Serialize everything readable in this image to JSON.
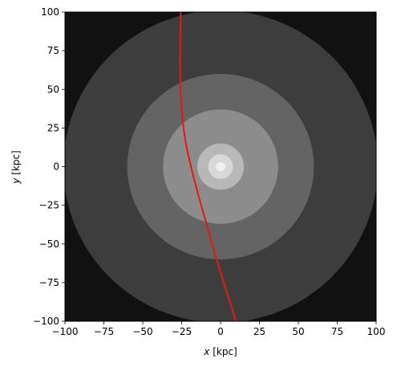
{
  "chart_data": {
    "type": "contour",
    "xlabel_var": "x",
    "xlabel_unit": " [kpc]",
    "ylabel_var": "y",
    "ylabel_unit": " [kpc]",
    "xlim": [
      -100,
      100
    ],
    "ylim": [
      -100,
      100
    ],
    "xticks": [
      -100,
      -75,
      -50,
      -25,
      0,
      25,
      50,
      75,
      100
    ],
    "yticks": [
      -100,
      -75,
      -50,
      -25,
      0,
      25,
      50,
      75,
      100
    ],
    "tick_labels_x": [
      "−100",
      "−75",
      "−50",
      "−25",
      "0",
      "25",
      "50",
      "75",
      "100"
    ],
    "tick_labels_y": [
      "−100",
      "−75",
      "−50",
      "−25",
      "0",
      "25",
      "50",
      "75",
      "100"
    ],
    "background_color": "#111111",
    "contour_levels": [
      {
        "radius": 101,
        "color": "#3d3d3d"
      },
      {
        "radius": 60,
        "color": "#646464"
      },
      {
        "radius": 37,
        "color": "#8c8c8c"
      },
      {
        "radius": 15,
        "color": "#b8b8b8"
      },
      {
        "radius": 8,
        "color": "#d8d8d8"
      },
      {
        "radius": 3,
        "color": "#f2f2f2"
      }
    ],
    "series": [
      {
        "color": "#e8161b",
        "x": [
          -25.6,
          -25.8,
          -26.0,
          -26.0,
          -25.8,
          -25.2,
          -24.2,
          -22.5,
          -20.2,
          -17.3,
          -13.8,
          -10.2,
          -6.5,
          -2.8,
          0.8,
          4.3,
          7.4,
          9.8
        ],
        "y": [
          100,
          88,
          76,
          64,
          52,
          40,
          28,
          16,
          5,
          -7,
          -20,
          -33,
          -46,
          -59,
          -71,
          -82,
          -92,
          -100
        ]
      }
    ]
  }
}
